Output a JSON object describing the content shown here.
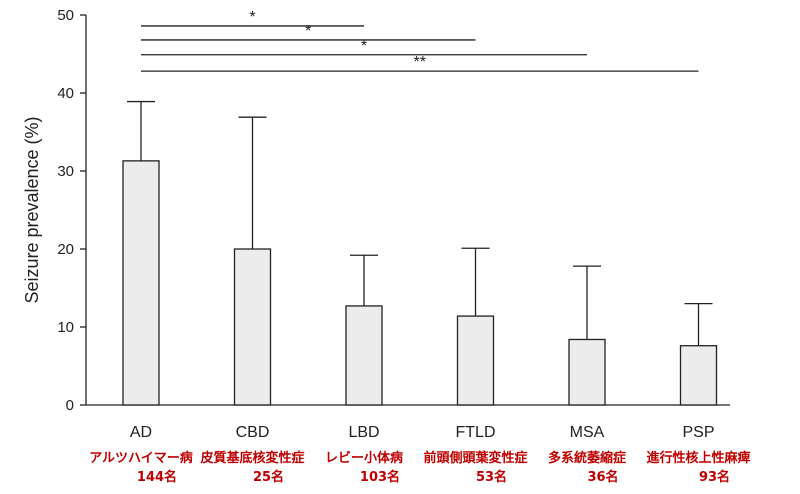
{
  "chart_data": {
    "type": "bar",
    "ylabel": "Seizure prevalence (%)",
    "ylim": [
      0,
      50
    ],
    "yticks": [
      0,
      10,
      20,
      30,
      40,
      50
    ],
    "categories": [
      "AD",
      "CBD",
      "LBD",
      "FTLD",
      "MSA",
      "PSP"
    ],
    "values": [
      31.3,
      20.0,
      12.7,
      11.4,
      8.4,
      7.6
    ],
    "error_upper": [
      38.9,
      36.9,
      19.2,
      20.1,
      17.8,
      13.0
    ],
    "annotations": [
      {
        "jp_name": "アルツハイマー病",
        "count": "144名"
      },
      {
        "jp_name": "皮質基底核変性症",
        "count": "25名"
      },
      {
        "jp_name": "レビー小体病",
        "count": "103名"
      },
      {
        "jp_name": "前頭側頭葉変性症",
        "count": "53名"
      },
      {
        "jp_name": "多系統萎縮症",
        "count": "36名"
      },
      {
        "jp_name": "進行性核上性麻痺",
        "count": "93名"
      }
    ],
    "significance": [
      {
        "from": "AD",
        "to": "LBD",
        "y": 48.6,
        "label": "*"
      },
      {
        "from": "AD",
        "to": "FTLD",
        "y": 46.8,
        "label": "*"
      },
      {
        "from": "AD",
        "to": "MSA",
        "y": 44.9,
        "label": "*"
      },
      {
        "from": "AD",
        "to": "PSP",
        "y": 42.8,
        "label": "**"
      }
    ],
    "colors": {
      "bar_fill": "#ececec",
      "bar_stroke": "#222222",
      "annotation": "#c00000"
    }
  }
}
